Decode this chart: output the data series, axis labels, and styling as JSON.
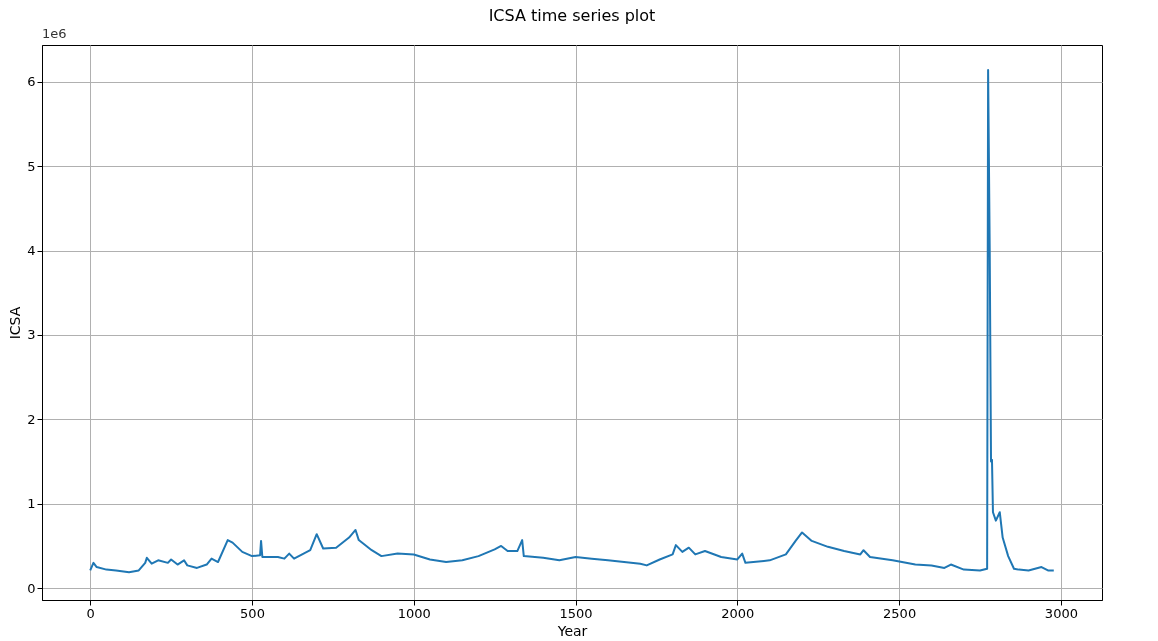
{
  "chart_data": {
    "type": "line",
    "title": "ICSA time series plot",
    "xlabel": "Year",
    "ylabel": "ICSA",
    "annotations": [
      "1e6"
    ],
    "xlim": [
      -149,
      3127
    ],
    "xticks": [
      0,
      500,
      1000,
      1500,
      2000,
      2500,
      3000
    ],
    "ylim": [
      -0.14,
      6.436
    ],
    "yticks": [
      0,
      1,
      2,
      3,
      4,
      5,
      6
    ],
    "grid": true,
    "marker": "none",
    "line_style": "solid",
    "x": [
      0,
      10,
      20,
      50,
      80,
      120,
      150,
      170,
      175,
      190,
      210,
      240,
      250,
      270,
      290,
      300,
      330,
      360,
      375,
      395,
      425,
      440,
      470,
      500,
      525,
      528,
      532,
      580,
      600,
      615,
      630,
      680,
      700,
      720,
      760,
      800,
      820,
      830,
      870,
      900,
      950,
      1000,
      1050,
      1100,
      1150,
      1200,
      1250,
      1270,
      1290,
      1320,
      1335,
      1340,
      1400,
      1450,
      1500,
      1550,
      1600,
      1650,
      1700,
      1720,
      1760,
      1800,
      1810,
      1830,
      1850,
      1870,
      1900,
      1950,
      2000,
      2015,
      2025,
      2100,
      2150,
      2180,
      2200,
      2230,
      2280,
      2330,
      2380,
      2390,
      2410,
      2480,
      2550,
      2600,
      2640,
      2660,
      2700,
      2750,
      2772,
      2775,
      2780,
      2784,
      2787,
      2790,
      2799,
      2811,
      2820,
      2837,
      2855,
      2870,
      2900,
      2940,
      2960,
      2978
    ],
    "series": [
      {
        "color": "#1f77b4",
        "values": [
          0.21,
          0.3,
          0.25,
          0.22,
          0.21,
          0.19,
          0.21,
          0.3,
          0.36,
          0.29,
          0.33,
          0.3,
          0.34,
          0.28,
          0.33,
          0.27,
          0.24,
          0.28,
          0.35,
          0.31,
          0.57,
          0.54,
          0.43,
          0.38,
          0.39,
          0.56,
          0.37,
          0.37,
          0.35,
          0.41,
          0.35,
          0.45,
          0.64,
          0.47,
          0.48,
          0.6,
          0.69,
          0.57,
          0.45,
          0.38,
          0.41,
          0.4,
          0.34,
          0.31,
          0.33,
          0.38,
          0.46,
          0.5,
          0.44,
          0.44,
          0.57,
          0.38,
          0.36,
          0.33,
          0.37,
          0.35,
          0.33,
          0.31,
          0.29,
          0.27,
          0.34,
          0.4,
          0.51,
          0.43,
          0.48,
          0.4,
          0.44,
          0.37,
          0.34,
          0.41,
          0.3,
          0.33,
          0.4,
          0.56,
          0.66,
          0.56,
          0.49,
          0.44,
          0.4,
          0.45,
          0.37,
          0.33,
          0.28,
          0.27,
          0.24,
          0.28,
          0.22,
          0.21,
          0.23,
          6.14,
          4.0,
          1.5,
          1.52,
          0.9,
          0.8,
          0.9,
          0.6,
          0.38,
          0.23,
          0.22,
          0.21,
          0.25,
          0.21,
          0.21
        ]
      }
    ]
  }
}
